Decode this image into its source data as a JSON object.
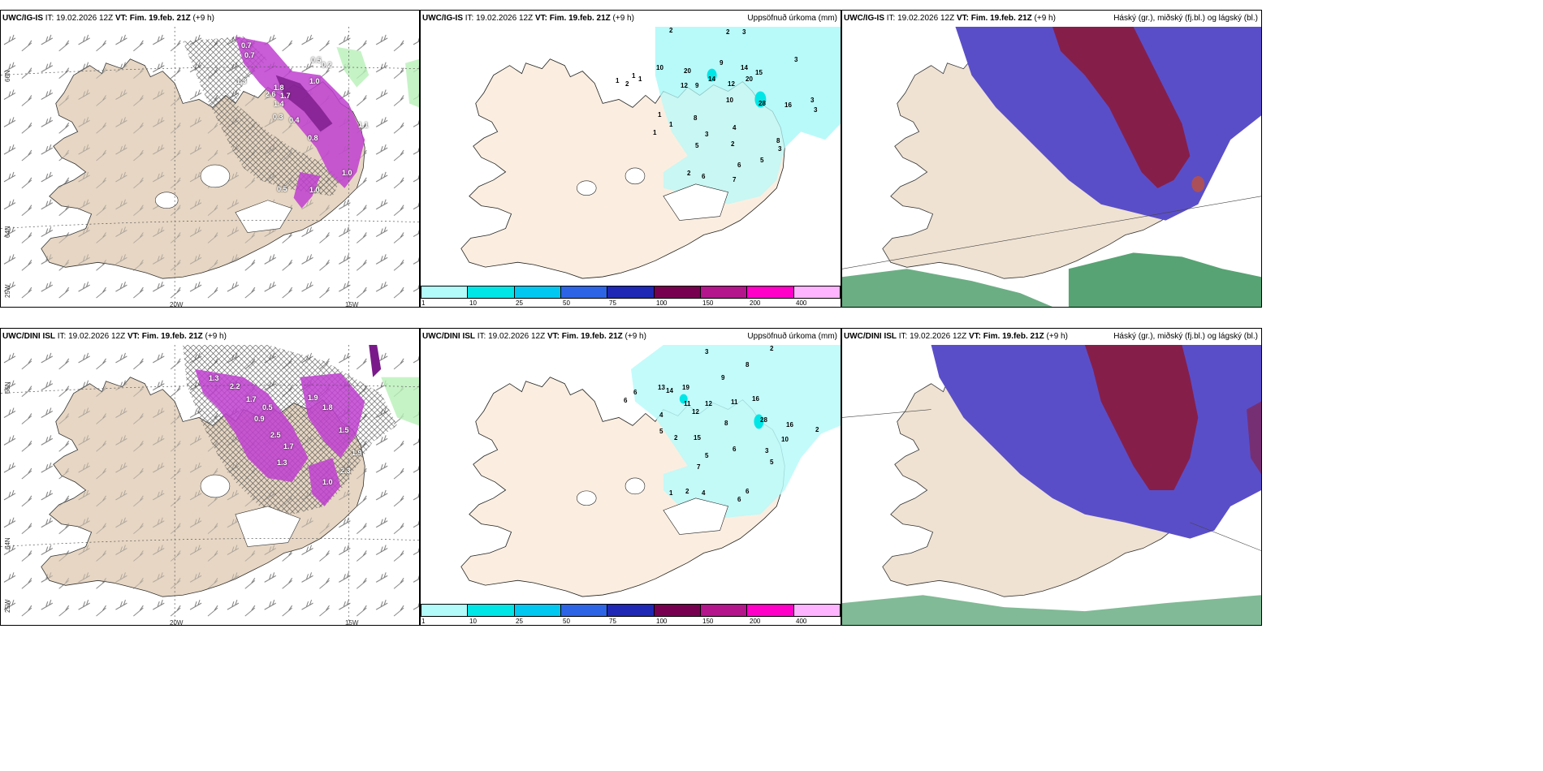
{
  "panels": [
    {
      "id": "tl",
      "model": "UWC/IG-IS",
      "it": " IT: 19.02.2026 12Z ",
      "vt_label": "VT:",
      "vt": " Fim. 19.feb. 21Z",
      "lead": " (+9 h)",
      "right_title": ""
    },
    {
      "id": "tm",
      "model": "UWC/IG-IS",
      "it": " IT: 19.02.2026 12Z ",
      "vt_label": "VT:",
      "vt": " Fim. 19.feb. 21Z",
      "lead": " (+9 h)",
      "right_title": "Uppsöfnuð úrkoma (mm)"
    },
    {
      "id": "tr",
      "model": "UWC/IG-IS",
      "it": " IT: 19.02.2026 12Z ",
      "vt_label": "VT:",
      "vt": " Fim. 19.feb. 21Z",
      "lead": " (+9 h)",
      "right_title": "Háský (gr.), miðský (fj.bl.) og lágský (bl.)"
    },
    {
      "id": "bl",
      "model": "UWC/DINI ISL",
      "it": " IT: 19.02.2026 12Z ",
      "vt_label": "VT:",
      "vt": " Fim. 19.feb. 21Z",
      "lead": " (+9 h)",
      "right_title": ""
    },
    {
      "id": "bm",
      "model": "UWC/DINI ISL",
      "it": " IT: 19.02.2026 12Z ",
      "vt_label": "VT:",
      "vt": " Fim. 19.feb. 21Z",
      "lead": " (+9 h)",
      "right_title": "Uppsöfnuð úrkoma (mm)"
    },
    {
      "id": "br",
      "model": "UWC/DINI ISL",
      "it": " IT: 19.02.2026 12Z ",
      "vt_label": "VT:",
      "vt": " Fim. 19.feb. 21Z",
      "lead": " (+9 h)",
      "right_title": "Háský (gr.), miðský (fj.bl.) og lágský (bl.)"
    }
  ],
  "colorbar": {
    "colors": [
      "#b3fafa",
      "#00e6e6",
      "#00c8f0",
      "#2d64e6",
      "#1e28b4",
      "#780050",
      "#b4148c",
      "#ff00c8",
      "#ffb4ff"
    ],
    "ticks": [
      "1",
      "10",
      "25",
      "50",
      "75",
      "100",
      "150",
      "200",
      "400"
    ]
  },
  "grid_labels": {
    "lon_w20": "20W",
    "lon_w15": "15W",
    "lat_66": "66N",
    "lat_64": "64N",
    "lon_25": "25W"
  },
  "precip_labels_top": [
    "2",
    "3",
    "2",
    "3",
    "10",
    "9",
    "20",
    "14",
    "12",
    "9",
    "14",
    "20",
    "15",
    "12",
    "1",
    "2",
    "1",
    "1",
    "10",
    "28",
    "16",
    "3",
    "3",
    "1",
    "1",
    "1",
    "8",
    "3",
    "4",
    "2",
    "5",
    "8",
    "3",
    "5",
    "6",
    "2",
    "6",
    "7"
  ],
  "precip_labels_bottom": [
    "3",
    "2",
    "8",
    "9",
    "19",
    "13",
    "14",
    "11",
    "12",
    "11",
    "16",
    "12",
    "28",
    "16",
    "2",
    "8",
    "15",
    "5",
    "6",
    "3",
    "10",
    "5",
    "7",
    "2",
    "4",
    "6",
    "1",
    "2",
    "6",
    "5",
    "6",
    "4",
    "6"
  ],
  "peak_labels_top": [
    "0.7",
    "0.7",
    "1.3",
    "1.8",
    "1.0",
    "0.5",
    "0.2",
    "1.4",
    "2.6",
    "1.7",
    "0.3",
    "0.4",
    "0.8",
    "1.1",
    "1.0",
    "0.5",
    "1.0"
  ],
  "peak_labels_bottom": [
    "1.3",
    "2.2",
    "1.7",
    "1.9",
    "1.8",
    "2.5",
    "1.7",
    "1.3",
    "0.5",
    "1.9",
    "2.3",
    "1.0",
    "1.5",
    "0.9"
  ],
  "colors": {
    "land": "#efe2d2",
    "landWind": "#e6d6c3",
    "precipCyan": "#b8fafa",
    "cloudHigh": "#8b1a3c",
    "cloudMid": "#5a4ec8",
    "cloudLow": "#2d8c50",
    "magenta": "#c040d0",
    "green": "#b8f0b8"
  }
}
